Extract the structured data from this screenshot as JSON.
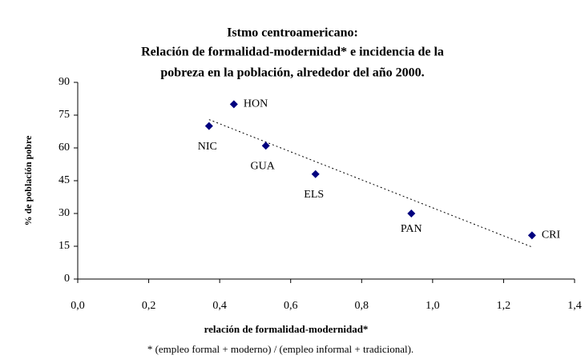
{
  "chart_data": {
    "type": "scatter",
    "title": [
      "Istmo centroamericano:",
      "Relación de formalidad-modernidad* e incidencia de la",
      "pobreza en la población, alrededor del año 2000."
    ],
    "x_label": "relación de formalidad-modernidad*",
    "y_label": "% de población pobre",
    "footnote": "* (empleo formal + moderno) / (empleo informal + tradicional).",
    "labels": [
      "NIC",
      "HON",
      "GUA",
      "ELS",
      "PAN",
      "CRI"
    ],
    "x": [
      0.37,
      0.44,
      0.53,
      0.67,
      0.94,
      1.28
    ],
    "values": [
      70,
      80,
      61,
      48,
      30,
      20
    ],
    "color": "#00007f",
    "trendline": true,
    "xlim": [
      0,
      1.4
    ],
    "xticks": [
      {
        "value": 0,
        "label": "0,0"
      },
      {
        "value": 0.2,
        "label": "0,2"
      },
      {
        "value": 0.4,
        "label": "0,4"
      },
      {
        "value": 0.6,
        "label": "0,6"
      },
      {
        "value": 0.8,
        "label": "0,8"
      },
      {
        "value": 1.0,
        "label": "1,0"
      },
      {
        "value": 1.2,
        "label": "1,2"
      },
      {
        "value": 1.4,
        "label": "1,4"
      }
    ],
    "ylim": [
      0,
      90
    ],
    "yticks": [
      0,
      15,
      30,
      45,
      60,
      75,
      90
    ]
  }
}
